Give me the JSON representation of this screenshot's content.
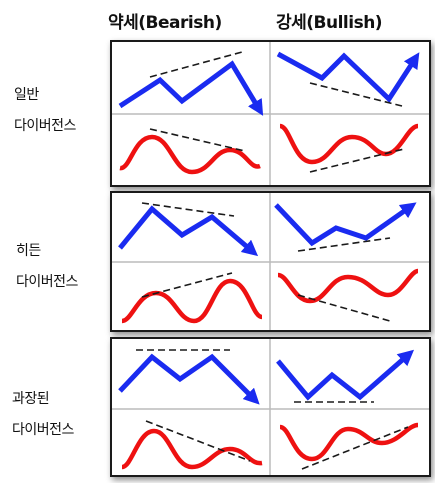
{
  "headers": {
    "bearish": "약세(Bearish)",
    "bullish": "강세(Bullish)"
  },
  "rows": [
    {
      "label_line1": "일반",
      "label_line2": "다이버전스"
    },
    {
      "label_line1": "히든",
      "label_line2": "다이버전스"
    },
    {
      "label_line1": "과장된",
      "label_line2": "다이버전스"
    }
  ],
  "colors": {
    "price_line": "#1a2bf0",
    "indicator_line": "#ee1111",
    "trendline": "#1a1a1a",
    "divider": "#bbbbbb"
  }
}
